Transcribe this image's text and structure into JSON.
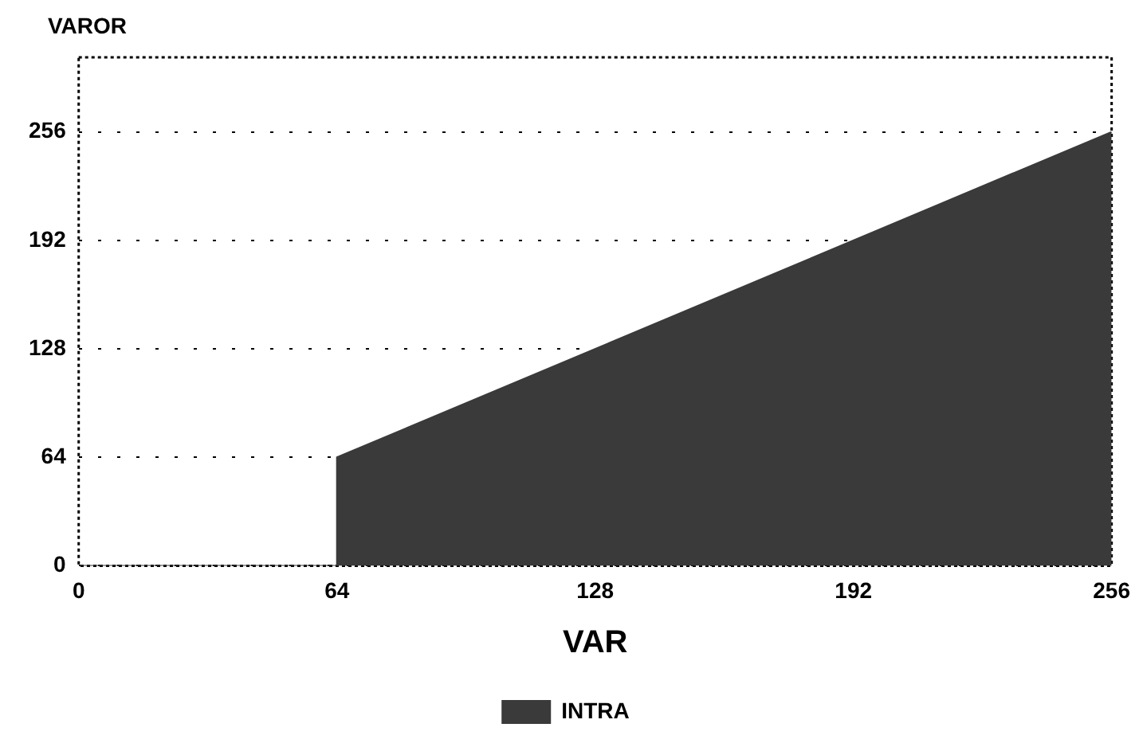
{
  "chart_data": {
    "type": "area",
    "ylabel": "VAROR",
    "xlabel": "VAR",
    "x": [
      0,
      64,
      64,
      256
    ],
    "series": [
      {
        "name": "INTRA",
        "color": "#3a3a3a",
        "values": [
          0,
          0,
          64,
          256
        ]
      }
    ],
    "xlim": [
      0,
      256
    ],
    "xticks": [
      0,
      64,
      128,
      192,
      256
    ],
    "ylim": [
      0,
      300
    ],
    "yticks": [
      0,
      64,
      128,
      192,
      256
    ],
    "grid": "y",
    "legend": "bottom"
  }
}
